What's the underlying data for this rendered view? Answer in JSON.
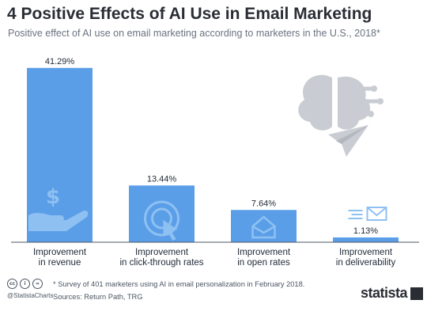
{
  "chart_data": {
    "type": "bar",
    "title": "4 Positive Effects of AI Use in Email Marketing",
    "subtitle": "Positive effect of AI use on email marketing according to marketers in the U.S., 2018*",
    "categories": [
      [
        "Improvement",
        "in revenue"
      ],
      [
        "Improvement",
        "in click-through rates"
      ],
      [
        "Improvement",
        "in open rates"
      ],
      [
        "Improvement",
        "in deliverability"
      ]
    ],
    "values": [
      41.29,
      13.44,
      7.64,
      1.13
    ],
    "value_labels": [
      "41.29%",
      "13.44%",
      "7.64%",
      "1.13%"
    ],
    "icons": [
      "dollar-hand-icon",
      "click-cursor-icon",
      "open-envelope-icon",
      "sending-envelope-icon"
    ],
    "decoration": [
      "brain-circuit-icon",
      "paper-plane-icon"
    ],
    "ylim": [
      0,
      42
    ],
    "grid": false,
    "xlabel": "",
    "ylabel": "",
    "colors": {
      "bar": "#5b9ee8",
      "bar_icon": "#8ec0f2",
      "label": "#1f2937",
      "axis": "#4b5563",
      "decor": "#c9cdd3"
    }
  },
  "footer": {
    "note": "* Survey of 401 marketers using AI in email personalization in February 2018.",
    "sources": "Sources: Return Path, TRG",
    "handle": "@StatistaCharts",
    "brand": "statista",
    "cc_icons": [
      "cc",
      "i",
      "="
    ]
  }
}
